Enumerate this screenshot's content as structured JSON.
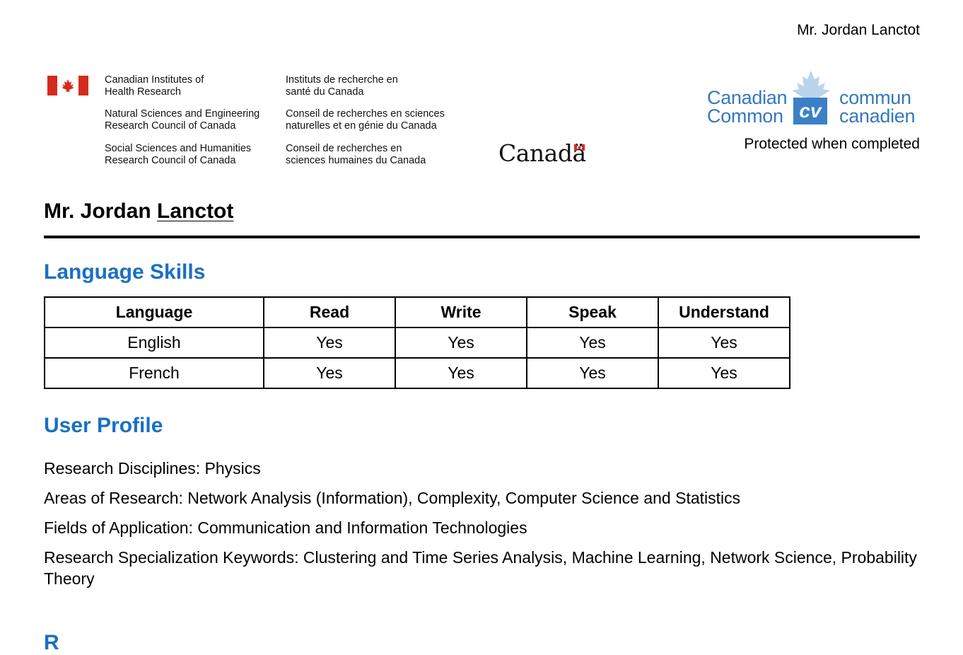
{
  "header": {
    "name": "Mr. Jordan Lanctot"
  },
  "agencies": [
    {
      "en": [
        "Canadian Institutes of",
        "Health Research"
      ],
      "fr": [
        "Instituts de recherche en",
        "santé du Canada"
      ]
    },
    {
      "en": [
        "Natural Sciences and Engineering",
        "Research Council of Canada"
      ],
      "fr": [
        "Conseil de recherches en sciences",
        "naturelles et en génie du Canada"
      ]
    },
    {
      "en": [
        "Social Sciences and Humanities",
        "Research Council of Canada"
      ],
      "fr": [
        "Conseil de recherches en",
        "sciences humaines du Canada"
      ]
    }
  ],
  "wordmark": "Canadä",
  "ccv": {
    "left_top": "Canadian",
    "left_bottom": "Common",
    "badge": "cv",
    "right_top": "commun",
    "right_bottom": "canadien",
    "protected": "Protected when completed"
  },
  "person": {
    "prefix": "Mr. Jordan",
    "surname": "Lanctot"
  },
  "sections": {
    "language_skills": "Language Skills",
    "user_profile": "User Profile",
    "next_partial": "R"
  },
  "language_table": {
    "columns": [
      "Language",
      "Read",
      "Write",
      "Speak",
      "Understand"
    ],
    "rows": [
      [
        "English",
        "Yes",
        "Yes",
        "Yes",
        "Yes"
      ],
      [
        "French",
        "Yes",
        "Yes",
        "Yes",
        "Yes"
      ]
    ]
  },
  "profile": [
    "Research Disciplines: Physics",
    "Areas of Research: Network Analysis (Information), Complexity, Computer Science and Statistics",
    "Fields of Application: Communication and Information Technologies",
    "Research Specialization Keywords: Clustering and Time Series Analysis, Machine Learning, Network Science, Probability Theory"
  ],
  "colors": {
    "heading_blue": "#1a6fc4",
    "flag_red": "#d52b1e",
    "ccv_blue": "#3578bd"
  }
}
